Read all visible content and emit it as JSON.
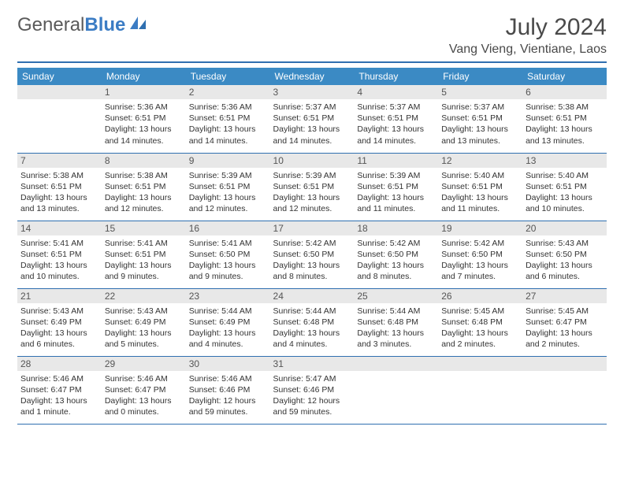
{
  "logo": {
    "text_gray": "General",
    "text_blue": "Blue"
  },
  "title": "July 2024",
  "location": "Vang Vieng, Vientiane, Laos",
  "colors": {
    "header_bg": "#3b8ac4",
    "header_text": "#ffffff",
    "divider": "#2f6fb0",
    "daynum_bg": "#e8e8e8",
    "text": "#333333"
  },
  "day_labels": [
    "Sunday",
    "Monday",
    "Tuesday",
    "Wednesday",
    "Thursday",
    "Friday",
    "Saturday"
  ],
  "weeks": [
    [
      {
        "n": "",
        "sr": "",
        "ss": "",
        "dl": ""
      },
      {
        "n": "1",
        "sr": "Sunrise: 5:36 AM",
        "ss": "Sunset: 6:51 PM",
        "dl": "Daylight: 13 hours and 14 minutes."
      },
      {
        "n": "2",
        "sr": "Sunrise: 5:36 AM",
        "ss": "Sunset: 6:51 PM",
        "dl": "Daylight: 13 hours and 14 minutes."
      },
      {
        "n": "3",
        "sr": "Sunrise: 5:37 AM",
        "ss": "Sunset: 6:51 PM",
        "dl": "Daylight: 13 hours and 14 minutes."
      },
      {
        "n": "4",
        "sr": "Sunrise: 5:37 AM",
        "ss": "Sunset: 6:51 PM",
        "dl": "Daylight: 13 hours and 14 minutes."
      },
      {
        "n": "5",
        "sr": "Sunrise: 5:37 AM",
        "ss": "Sunset: 6:51 PM",
        "dl": "Daylight: 13 hours and 13 minutes."
      },
      {
        "n": "6",
        "sr": "Sunrise: 5:38 AM",
        "ss": "Sunset: 6:51 PM",
        "dl": "Daylight: 13 hours and 13 minutes."
      }
    ],
    [
      {
        "n": "7",
        "sr": "Sunrise: 5:38 AM",
        "ss": "Sunset: 6:51 PM",
        "dl": "Daylight: 13 hours and 13 minutes."
      },
      {
        "n": "8",
        "sr": "Sunrise: 5:38 AM",
        "ss": "Sunset: 6:51 PM",
        "dl": "Daylight: 13 hours and 12 minutes."
      },
      {
        "n": "9",
        "sr": "Sunrise: 5:39 AM",
        "ss": "Sunset: 6:51 PM",
        "dl": "Daylight: 13 hours and 12 minutes."
      },
      {
        "n": "10",
        "sr": "Sunrise: 5:39 AM",
        "ss": "Sunset: 6:51 PM",
        "dl": "Daylight: 13 hours and 12 minutes."
      },
      {
        "n": "11",
        "sr": "Sunrise: 5:39 AM",
        "ss": "Sunset: 6:51 PM",
        "dl": "Daylight: 13 hours and 11 minutes."
      },
      {
        "n": "12",
        "sr": "Sunrise: 5:40 AM",
        "ss": "Sunset: 6:51 PM",
        "dl": "Daylight: 13 hours and 11 minutes."
      },
      {
        "n": "13",
        "sr": "Sunrise: 5:40 AM",
        "ss": "Sunset: 6:51 PM",
        "dl": "Daylight: 13 hours and 10 minutes."
      }
    ],
    [
      {
        "n": "14",
        "sr": "Sunrise: 5:41 AM",
        "ss": "Sunset: 6:51 PM",
        "dl": "Daylight: 13 hours and 10 minutes."
      },
      {
        "n": "15",
        "sr": "Sunrise: 5:41 AM",
        "ss": "Sunset: 6:51 PM",
        "dl": "Daylight: 13 hours and 9 minutes."
      },
      {
        "n": "16",
        "sr": "Sunrise: 5:41 AM",
        "ss": "Sunset: 6:50 PM",
        "dl": "Daylight: 13 hours and 9 minutes."
      },
      {
        "n": "17",
        "sr": "Sunrise: 5:42 AM",
        "ss": "Sunset: 6:50 PM",
        "dl": "Daylight: 13 hours and 8 minutes."
      },
      {
        "n": "18",
        "sr": "Sunrise: 5:42 AM",
        "ss": "Sunset: 6:50 PM",
        "dl": "Daylight: 13 hours and 8 minutes."
      },
      {
        "n": "19",
        "sr": "Sunrise: 5:42 AM",
        "ss": "Sunset: 6:50 PM",
        "dl": "Daylight: 13 hours and 7 minutes."
      },
      {
        "n": "20",
        "sr": "Sunrise: 5:43 AM",
        "ss": "Sunset: 6:50 PM",
        "dl": "Daylight: 13 hours and 6 minutes."
      }
    ],
    [
      {
        "n": "21",
        "sr": "Sunrise: 5:43 AM",
        "ss": "Sunset: 6:49 PM",
        "dl": "Daylight: 13 hours and 6 minutes."
      },
      {
        "n": "22",
        "sr": "Sunrise: 5:43 AM",
        "ss": "Sunset: 6:49 PM",
        "dl": "Daylight: 13 hours and 5 minutes."
      },
      {
        "n": "23",
        "sr": "Sunrise: 5:44 AM",
        "ss": "Sunset: 6:49 PM",
        "dl": "Daylight: 13 hours and 4 minutes."
      },
      {
        "n": "24",
        "sr": "Sunrise: 5:44 AM",
        "ss": "Sunset: 6:48 PM",
        "dl": "Daylight: 13 hours and 4 minutes."
      },
      {
        "n": "25",
        "sr": "Sunrise: 5:44 AM",
        "ss": "Sunset: 6:48 PM",
        "dl": "Daylight: 13 hours and 3 minutes."
      },
      {
        "n": "26",
        "sr": "Sunrise: 5:45 AM",
        "ss": "Sunset: 6:48 PM",
        "dl": "Daylight: 13 hours and 2 minutes."
      },
      {
        "n": "27",
        "sr": "Sunrise: 5:45 AM",
        "ss": "Sunset: 6:47 PM",
        "dl": "Daylight: 13 hours and 2 minutes."
      }
    ],
    [
      {
        "n": "28",
        "sr": "Sunrise: 5:46 AM",
        "ss": "Sunset: 6:47 PM",
        "dl": "Daylight: 13 hours and 1 minute."
      },
      {
        "n": "29",
        "sr": "Sunrise: 5:46 AM",
        "ss": "Sunset: 6:47 PM",
        "dl": "Daylight: 13 hours and 0 minutes."
      },
      {
        "n": "30",
        "sr": "Sunrise: 5:46 AM",
        "ss": "Sunset: 6:46 PM",
        "dl": "Daylight: 12 hours and 59 minutes."
      },
      {
        "n": "31",
        "sr": "Sunrise: 5:47 AM",
        "ss": "Sunset: 6:46 PM",
        "dl": "Daylight: 12 hours and 59 minutes."
      },
      {
        "n": "",
        "sr": "",
        "ss": "",
        "dl": ""
      },
      {
        "n": "",
        "sr": "",
        "ss": "",
        "dl": ""
      },
      {
        "n": "",
        "sr": "",
        "ss": "",
        "dl": ""
      }
    ]
  ]
}
